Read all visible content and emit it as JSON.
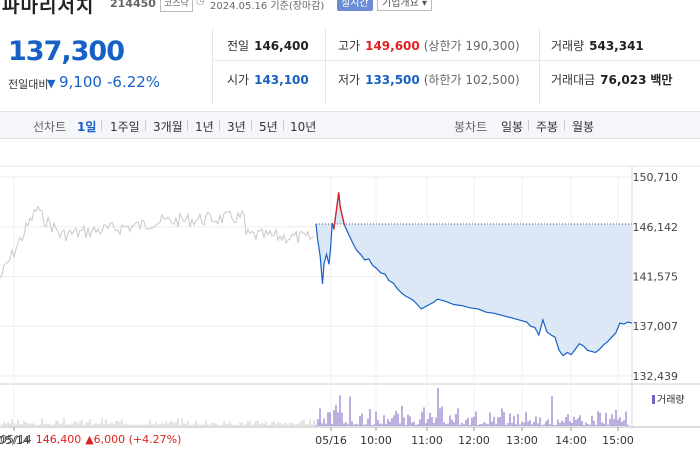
{
  "header": {
    "stock_name": "파마리서치",
    "code": "214450",
    "market": "코스닥",
    "clock_icon": "clock-icon",
    "date_basis": "2024.05.16  기준(장마감)",
    "realtime_label": "실시간",
    "company_info_label": "기업개요 ▾"
  },
  "price": {
    "current": "137,300",
    "change_label": "전일대비",
    "change_arrow": "▼",
    "change_value": "9,100",
    "change_percent": "-6.22%",
    "color_down": "#1761c5",
    "color_up": "#e02020"
  },
  "stats": {
    "prev_close": {
      "label": "전일",
      "value": "146,400"
    },
    "high": {
      "label": "고가",
      "value": "149,600",
      "limit": "(상한가 190,300)"
    },
    "volume": {
      "label": "거래량",
      "value": "543,341"
    },
    "open": {
      "label": "시가",
      "value": "143,100"
    },
    "low": {
      "label": "저가",
      "value": "133,500",
      "limit": "(하한가 102,500)"
    },
    "turnover": {
      "label": "거래대금",
      "value": "76,023",
      "unit": "백만"
    }
  },
  "tabs": {
    "line_chart": "선차트",
    "periods": [
      "1일",
      "1주일",
      "3개월",
      "1년",
      "3년",
      "5년",
      "10년"
    ],
    "active_period": "1일",
    "candle_chart": "봉차트",
    "candles": [
      "일봉",
      "주봉",
      "월봉"
    ]
  },
  "chart_data": {
    "type": "line",
    "title": "",
    "y_ticks": [
      "150,710",
      "146,142",
      "141,575",
      "137,007",
      "132,439"
    ],
    "ylim": [
      132439,
      150710
    ],
    "x_ticks": [
      "05/14",
      "05/16",
      "10:00",
      "11:00",
      "12:00",
      "13:00",
      "14:00",
      "15:00"
    ],
    "previous_close_reference": 146400,
    "series": [
      {
        "x": [
          "09:00",
          "09:02",
          "09:05",
          "09:08",
          "09:10",
          "09:13",
          "09:16",
          "09:18",
          "09:20",
          "09:22",
          "09:25",
          "09:28",
          "09:30",
          "09:35",
          "09:40",
          "09:45",
          "09:50",
          "09:55",
          "10:00",
          "10:05",
          "10:10",
          "10:15",
          "10:20",
          "10:25",
          "10:30",
          "10:35",
          "10:40",
          "10:45",
          "10:50",
          "10:55",
          "11:00",
          "11:05",
          "11:10",
          "11:15",
          "11:20",
          "11:25",
          "11:30",
          "11:40",
          "11:50",
          "12:00",
          "12:10",
          "12:20",
          "12:30",
          "12:40",
          "12:50",
          "13:00",
          "13:10",
          "13:20",
          "13:25",
          "13:30",
          "13:35",
          "13:40",
          "13:45",
          "13:50",
          "13:55",
          "14:00",
          "14:05",
          "14:10",
          "14:15",
          "14:20",
          "14:25",
          "14:30",
          "14:35",
          "14:40",
          "14:45",
          "14:50",
          "14:55",
          "15:00",
          "15:05",
          "15:10",
          "15:15",
          "15:20",
          "15:25",
          "15:30"
        ],
        "values": [
          146400,
          145000,
          143500,
          140900,
          142800,
          143600,
          142700,
          144200,
          146500,
          145900,
          147600,
          149300,
          147900,
          146300,
          145500,
          144700,
          144000,
          143600,
          143100,
          143200,
          142600,
          142300,
          141900,
          141800,
          141200,
          141000,
          140500,
          140100,
          139800,
          139600,
          139400,
          139000,
          138600,
          138800,
          139000,
          139200,
          139500,
          139300,
          139000,
          138900,
          138700,
          138600,
          138300,
          138200,
          138000,
          137800,
          137600,
          137400,
          137000,
          136900,
          136200,
          137600,
          136500,
          136200,
          136000,
          134800,
          134300,
          134600,
          134400,
          134900,
          135400,
          135200,
          134800,
          134700,
          134600,
          134900,
          135300,
          135600,
          136000,
          136400,
          137300,
          137200,
          137400,
          137300
        ],
        "color": "#1761c5"
      }
    ],
    "volume_legend": "거래량",
    "volume_color": "#7a5fc0"
  },
  "prev_day": {
    "date": "05/14",
    "price": "146,400",
    "change": "▲6,000 (+4.27%)"
  }
}
